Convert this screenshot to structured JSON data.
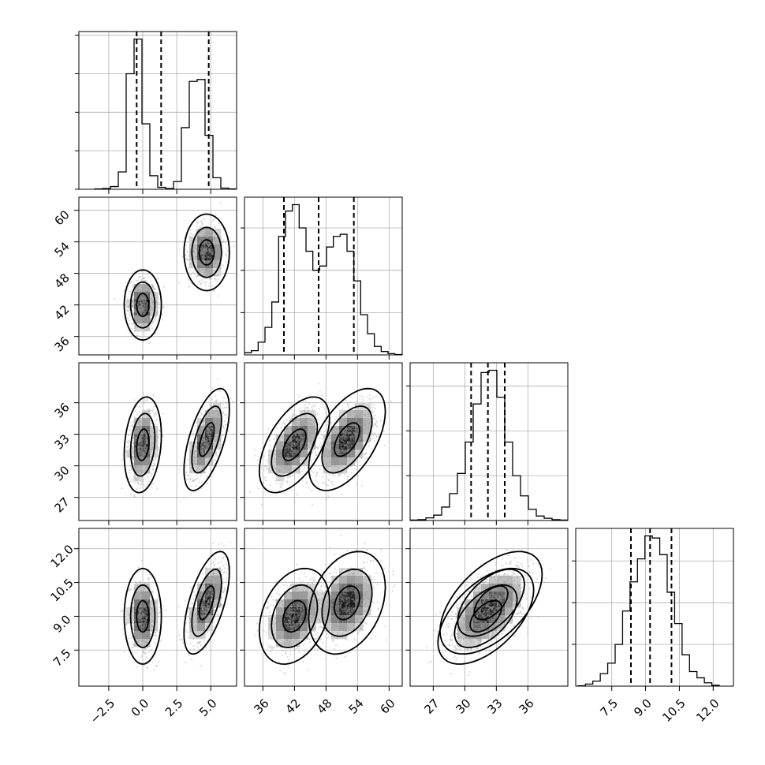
{
  "chart_data": {
    "type": "corner",
    "parameters": [
      {
        "key": "p0",
        "range": [
          -4.7,
          6.9
        ],
        "ticks": [
          -2.5,
          0.0,
          2.5,
          5.0
        ],
        "tick_labels": [
          "−2.5",
          "0.0",
          "2.5",
          "5.0"
        ],
        "quantiles": [
          -0.45,
          1.35,
          4.85
        ],
        "hist": {
          "edges": [
            -3.54,
            -2.96,
            -2.38,
            -1.8,
            -1.22,
            -0.64,
            -0.06,
            0.52,
            1.1,
            1.68,
            2.26,
            2.84,
            3.42,
            4.0,
            4.58,
            5.16,
            5.74,
            6.32,
            6.9
          ],
          "counts": [
            1,
            2,
            7,
            45,
            300,
            390,
            170,
            35,
            5,
            2,
            20,
            160,
            280,
            285,
            140,
            30,
            3,
            1
          ]
        },
        "hist_ticks": [
          0,
          100,
          200,
          300,
          400
        ]
      },
      {
        "key": "p1",
        "range": [
          32.5,
          62.5
        ],
        "ticks": [
          36,
          42,
          48,
          54,
          60
        ],
        "tick_labels": [
          "36",
          "42",
          "48",
          "54",
          "60"
        ],
        "quantiles": [
          40.0,
          46.6,
          53.3
        ],
        "hist": {
          "edges": [
            32.5,
            33.8,
            35.1,
            36.4,
            37.7,
            39.0,
            40.3,
            41.6,
            42.9,
            44.2,
            45.5,
            46.8,
            48.1,
            49.4,
            50.7,
            52.0,
            53.3,
            54.6,
            55.9,
            57.2,
            58.5,
            59.8,
            61.1,
            62.4
          ],
          "counts": [
            5,
            10,
            30,
            65,
            125,
            280,
            340,
            355,
            300,
            245,
            200,
            210,
            255,
            280,
            285,
            245,
            175,
            95,
            50,
            20,
            8,
            3,
            1
          ]
        },
        "hist_ticks": [
          100,
          200,
          300
        ]
      },
      {
        "key": "p2",
        "range": [
          24.8,
          39.8
        ],
        "ticks": [
          27,
          30,
          33,
          36
        ],
        "tick_labels": [
          "27",
          "30",
          "33",
          "36"
        ],
        "quantiles": [
          30.6,
          32.2,
          33.8
        ],
        "hist": {
          "edges": [
            24.8,
            25.55,
            26.3,
            27.05,
            27.8,
            28.55,
            29.3,
            30.05,
            30.8,
            31.55,
            32.3,
            33.05,
            33.8,
            34.55,
            35.3,
            36.05,
            36.8,
            37.55,
            38.3,
            39.05,
            39.8
          ],
          "counts": [
            1,
            2,
            6,
            12,
            30,
            60,
            105,
            175,
            260,
            330,
            335,
            275,
            175,
            100,
            55,
            25,
            10,
            5,
            2,
            1
          ]
        },
        "hist_ticks": [
          100,
          200,
          300
        ]
      },
      {
        "key": "p3",
        "range": [
          5.9,
          12.9
        ],
        "ticks": [
          7.5,
          9.0,
          10.5,
          12.0
        ],
        "tick_labels": [
          "7.5",
          "9.0",
          "10.5",
          "12.0"
        ],
        "quantiles": [
          8.35,
          9.2,
          10.15
        ],
        "hist": {
          "edges": [
            6.0,
            6.33,
            6.66,
            6.99,
            7.32,
            7.65,
            7.98,
            8.31,
            8.64,
            8.97,
            9.3,
            9.63,
            9.96,
            10.29,
            10.62,
            10.95,
            11.28,
            11.61,
            11.94,
            12.27
          ],
          "counts": [
            1,
            5,
            12,
            30,
            55,
            100,
            180,
            250,
            305,
            360,
            355,
            315,
            225,
            150,
            75,
            35,
            20,
            8,
            2
          ]
        },
        "hist_ticks": [
          100,
          200,
          300
        ]
      }
    ],
    "clusters": [
      {
        "mean": [
          0.0,
          42.0,
          32.0,
          9.0
        ],
        "sd": [
          0.45,
          2.2,
          1.5,
          0.7
        ],
        "cov": [
          [
            0,
            2,
            0.2
          ],
          [
            1,
            2,
            0.55
          ],
          [
            1,
            3,
            0.3
          ],
          [
            2,
            3,
            0.55
          ]
        ]
      },
      {
        "mean": [
          4.7,
          52.0,
          32.5,
          9.6
        ],
        "sd": [
          0.55,
          2.4,
          1.6,
          0.75
        ],
        "cov": [
          [
            0,
            2,
            0.6
          ],
          [
            0,
            3,
            0.6
          ],
          [
            1,
            2,
            0.55
          ],
          [
            1,
            3,
            0.3
          ],
          [
            2,
            3,
            0.55
          ]
        ]
      }
    ],
    "contour_levels": [
      0.39,
      0.86,
      0.99
    ]
  }
}
